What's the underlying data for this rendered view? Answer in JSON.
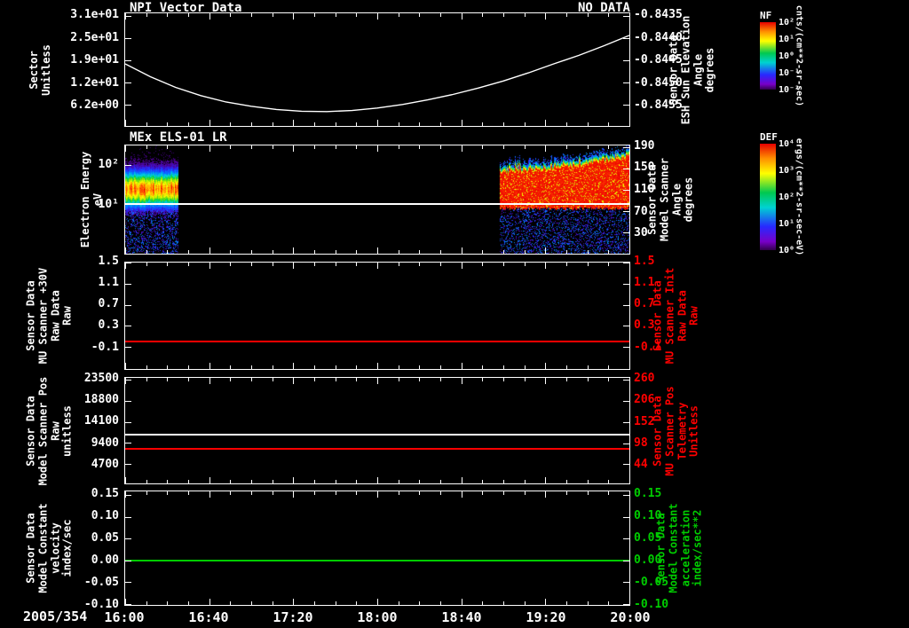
{
  "date_label": "2005/354",
  "x_axis": {
    "tick_labels": [
      "16:00",
      "16:40",
      "17:20",
      "18:00",
      "18:40",
      "19:20",
      "20:00"
    ],
    "tick_hours": [
      16.0,
      16.6667,
      17.3333,
      18.0,
      18.6667,
      19.3333,
      20.0
    ]
  },
  "colors": {
    "background": "#000000",
    "axis": "#ffffff",
    "red": "#ff0000",
    "green": "#00cc00"
  },
  "chart_data": [
    {
      "type": "line",
      "title": "NPI Vector Data",
      "annotation": "NO DATA",
      "y_left": {
        "title_lines": [
          "Sector",
          "Unitless"
        ],
        "scale": "linear",
        "domain": [
          0.37,
          32.0
        ],
        "tick_values": [
          31.25,
          25.0,
          18.75,
          12.5,
          6.25
        ],
        "tick_labels": [
          "3.1e+01",
          "2.5e+01",
          "1.9e+01",
          "1.2e+01",
          "6.2e+00"
        ],
        "color": "#ffffff"
      },
      "y_right": {
        "title_lines": [
          "Sensor Data",
          "ESH Sun Elevation",
          "Angle",
          "degrees"
        ],
        "scale": "linear",
        "domain": [
          -0.84597,
          -0.84344
        ],
        "tick_values": [
          -0.8435,
          -0.844,
          -0.8445,
          -0.845,
          -0.8455
        ],
        "tick_labels": [
          "-0.8435",
          "-0.8440",
          "-0.8445",
          "-0.8450",
          "-0.8455"
        ],
        "color": "#ffffff"
      },
      "series": [
        {
          "name": "esh-sun-elevation-curve",
          "type": "line",
          "axis": "y_left",
          "color": "#ffffff",
          "points": [
            [
              16.0,
              17.8
            ],
            [
              16.2,
              14.2
            ],
            [
              16.4,
              11.2
            ],
            [
              16.6,
              8.9
            ],
            [
              16.8,
              7.1
            ],
            [
              17.0,
              5.9
            ],
            [
              17.2,
              5.0
            ],
            [
              17.4,
              4.5
            ],
            [
              17.6,
              4.4
            ],
            [
              17.8,
              4.7
            ],
            [
              18.0,
              5.4
            ],
            [
              18.2,
              6.4
            ],
            [
              18.4,
              7.7
            ],
            [
              18.6,
              9.2
            ],
            [
              18.8,
              11.0
            ],
            [
              19.0,
              13.0
            ],
            [
              19.2,
              15.3
            ],
            [
              19.4,
              17.8
            ],
            [
              19.6,
              20.2
            ],
            [
              19.8,
              22.9
            ],
            [
              20.0,
              25.8
            ]
          ]
        }
      ]
    },
    {
      "type": "heatmap",
      "title": "MEx ELS-01 LR",
      "y_left": {
        "title_lines": [
          "Electron Energy",
          "eV"
        ],
        "scale": "log",
        "domain": [
          0.55,
          320
        ],
        "tick_values": [
          100,
          10
        ],
        "tick_labels": [
          "10²",
          "10¹"
        ],
        "color": "#ffffff"
      },
      "y_right": {
        "title_lines": [
          "Sensor Data",
          "Model Scanner",
          "Angle",
          "degrees"
        ],
        "scale": "linear",
        "domain": [
          -9,
          193
        ],
        "tick_values": [
          190,
          150,
          110,
          70,
          30
        ],
        "tick_labels": [
          "190",
          "150",
          "110",
          "70",
          "30"
        ],
        "color": "#ffffff"
      },
      "series": [
        {
          "name": "scanner-angle-line",
          "type": "hline",
          "axis": "y_left",
          "v": 10,
          "color": "#ffffff"
        }
      ],
      "spectrogram": {
        "colormap": "rainbow",
        "segments": [
          {
            "t_start": 16.0,
            "t_end": 16.42,
            "style": "band",
            "band_center_ev": 25,
            "band_sigma_decades": 0.3,
            "peak_intensity": 0.85,
            "noise_below_ev": 9
          },
          {
            "t_start": 18.97,
            "t_end": 20.0,
            "style": "filled",
            "e_low_ev": 8,
            "e_high_ev_start": 90,
            "e_high_ev_end": 230,
            "peak_intensity": 1.0,
            "noise_below_ev": 8
          }
        ],
        "data_gap_hours": [
          16.42,
          18.97
        ]
      }
    },
    {
      "type": "line",
      "y_left": {
        "title_lines": [
          "Sensor Data",
          "MU Scanner +30V",
          "Raw Data",
          "Raw"
        ],
        "scale": "linear",
        "domain": [
          -0.52,
          1.5
        ],
        "tick_values": [
          1.5,
          1.1,
          0.7,
          0.3,
          -0.1
        ],
        "tick_labels": [
          "1.5",
          "1.1",
          "0.7",
          "0.3",
          "-0.1"
        ],
        "color": "#ffffff"
      },
      "y_right": {
        "title_lines": [
          "Sensor Data",
          "MU Scanner Init",
          "Raw Data",
          "Raw"
        ],
        "scale": "linear",
        "domain": [
          -0.52,
          1.5
        ],
        "tick_values": [
          1.5,
          1.1,
          0.7,
          0.3,
          -0.1
        ],
        "tick_labels": [
          "1.5",
          "1.1",
          "0.7",
          "0.3",
          "-0.1"
        ],
        "color": "#ff0000"
      },
      "series": [
        {
          "name": "mu-scanner-init-line",
          "type": "hline",
          "axis": "y_left",
          "v": 0.0,
          "color": "#ff0000"
        }
      ]
    },
    {
      "type": "line",
      "y_left": {
        "title_lines": [
          "Sensor Data",
          "Model Scanner Pos",
          "Raw",
          "unitless"
        ],
        "scale": "linear",
        "domain": [
          400,
          23900
        ],
        "tick_values": [
          23500,
          18800,
          14100,
          9400,
          4700
        ],
        "tick_labels": [
          "23500",
          "18800",
          "14100",
          "9400",
          "4700"
        ],
        "color": "#ffffff"
      },
      "y_right": {
        "title_lines": [
          "Sensor Data",
          "MU Scanner Pos",
          "Telemetry",
          "Unitless"
        ],
        "scale": "linear",
        "domain": [
          -5,
          265
        ],
        "tick_values": [
          260,
          206,
          152,
          98,
          44
        ],
        "tick_labels": [
          "260",
          "206",
          "152",
          "98",
          "44"
        ],
        "color": "#ff0000"
      },
      "series": [
        {
          "name": "model-scanner-pos-line",
          "type": "hline",
          "axis": "y_left",
          "v": 11350,
          "color": "#ffffff"
        },
        {
          "name": "mu-scanner-pos-line",
          "type": "hline",
          "axis": "y_left",
          "v": 8030,
          "color": "#ff0000"
        }
      ]
    },
    {
      "type": "line",
      "y_left": {
        "title_lines": [
          "Sensor Data",
          "Model Constant",
          "velocity",
          "index/sec"
        ],
        "scale": "linear",
        "domain": [
          -0.102,
          0.158
        ],
        "tick_values": [
          0.15,
          0.1,
          0.05,
          0.0,
          -0.05,
          -0.1
        ],
        "tick_labels": [
          "0.15",
          "0.10",
          "0.05",
          "0.00",
          "-0.05",
          "-0.10"
        ],
        "color": "#ffffff"
      },
      "y_right": {
        "title_lines": [
          "Sensor Data",
          "Model Constant",
          "acceleration",
          "index/sec**2"
        ],
        "scale": "linear",
        "domain": [
          -0.102,
          0.158
        ],
        "tick_values": [
          0.15,
          0.1,
          0.05,
          0.0,
          -0.05,
          -0.1
        ],
        "tick_labels": [
          "0.15",
          "0.10",
          "0.05",
          "0.00",
          "-0.05",
          "-0.10"
        ],
        "color": "#00cc00"
      },
      "series": [
        {
          "name": "model-constant-velocity-line",
          "type": "hline",
          "axis": "y_left",
          "v": 0.0,
          "color": "#00cc00"
        }
      ]
    }
  ],
  "colorbars": [
    {
      "name": "NF",
      "unit": "cnts/(cm**2-sr-sec)",
      "tick_labels": [
        "10²",
        "10¹",
        "10⁰",
        "10⁻¹",
        "10⁻²"
      ]
    },
    {
      "name": "DEF",
      "unit": "ergs/(cm**2-sr-sec-eV)",
      "tick_labels": [
        "10⁴",
        "10³",
        "10²",
        "10¹",
        "10⁰"
      ]
    }
  ]
}
